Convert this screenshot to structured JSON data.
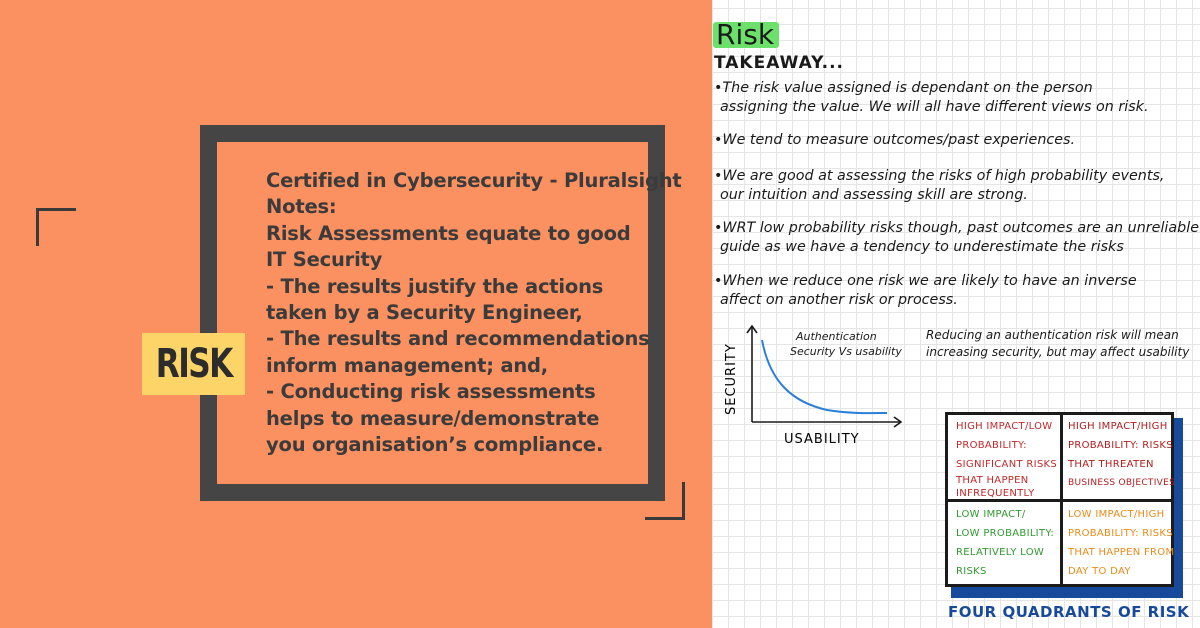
{
  "left": {
    "badge": "RISK",
    "notes": [
      "Certified in Cybersecurity - Pluralsight",
      "Notes:",
      "Risk Assessments equate to good",
      "IT Security",
      "- The results justify the actions",
      "taken by a Security Engineer,",
      "- The results and recommendations",
      "inform management; and,",
      "- Conducting risk assessments",
      "helps to measure/demonstrate",
      "you organisation’s compliance."
    ],
    "colors": {
      "background": "#fb9060",
      "frame": "#454545",
      "badge": "#fcd467"
    }
  },
  "right": {
    "title": "Risk",
    "takeaway": "TAKEAWAY...",
    "bullets": [
      [
        "•The risk value assigned is dependant on the person",
        "assigning the value. We will all have different views on risk."
      ],
      [
        "•We tend to measure outcomes/past experiences."
      ],
      [
        "•We are good at assessing the risks of high probability events,",
        "our intuition and assessing skill are strong."
      ],
      [
        "•WRT low probability risks though, past outcomes are an unreliable",
        "guide as we have a tendency to underestimate the risks"
      ],
      [
        "•When we reduce one risk we are likely to have an inverse",
        "affect on another risk or process."
      ]
    ],
    "chart": {
      "caption": [
        "Authentication",
        "Security Vs usability"
      ],
      "ylabel": "SECURITY",
      "xlabel": "USABILITY",
      "note": [
        "Reducing an authentication risk will mean",
        "increasing security, but may affect usability"
      ]
    },
    "quadrants": {
      "top_left": [
        "HIGH IMPACT/LOW",
        "PROBABILITY:",
        "SIGNIFICANT RISKS",
        "THAT HAPPEN",
        "INFREQUENTLY"
      ],
      "top_right": [
        "HIGH IMPACT/HIGH",
        "PROBABILITY: RISKS",
        "THAT THREATEN",
        "BUSINESS OBJECTIVES"
      ],
      "bottom_left": [
        "LOW IMPACT/",
        "LOW PROBABILITY:",
        "RELATIVELY LOW",
        "RISKS"
      ],
      "bottom_right": [
        "LOW IMPACT/HIGH",
        "PROBABILITY: RISKS",
        "THAT HAPPEN FROM",
        "DAY TO DAY"
      ],
      "caption": "FOUR QUADRANTS OF RISK"
    },
    "colors": {
      "title_highlight": "#6be06b",
      "curve": "#2a7fd8",
      "quad_shadow": "#174a9b"
    }
  }
}
